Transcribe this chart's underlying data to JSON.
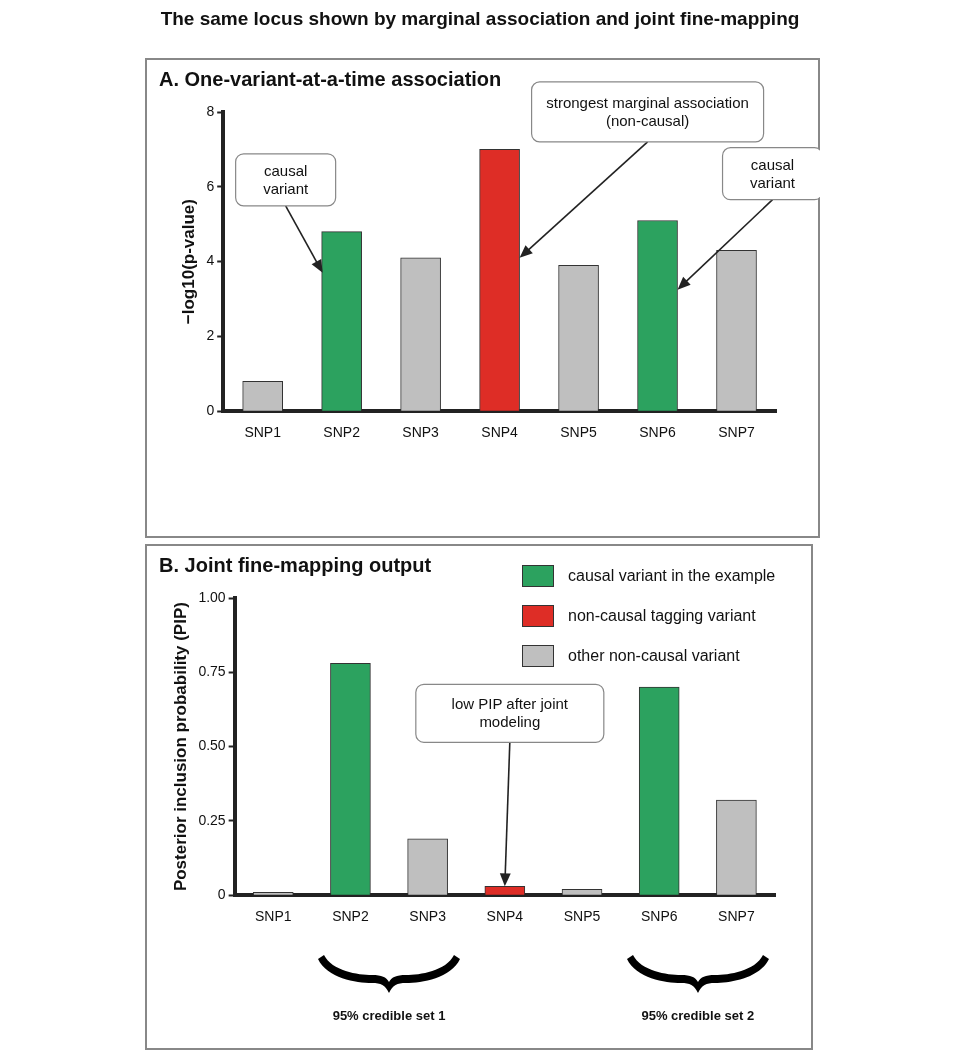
{
  "chart_data": [
    {
      "type": "bar",
      "title": "The same locus shown by marginal association and joint fine-mapping",
      "subtitle": "A. One-variant-at-a-time association",
      "ylabel": "−log10(p-value)",
      "categories": [
        "SNP1",
        "SNP2",
        "SNP3",
        "SNP4",
        "SNP5",
        "SNP6",
        "SNP7"
      ],
      "values": [
        0.8,
        4.8,
        4.1,
        7.0,
        3.9,
        5.1,
        4.3
      ],
      "colors": [
        "#bfbfbf",
        "#2ca25f",
        "#bfbfbf",
        "#de2d26",
        "#bfbfbf",
        "#2ca25f",
        "#bfbfbf"
      ],
      "ylim": [
        0,
        8
      ],
      "yticks": [
        0,
        2,
        4,
        6,
        8
      ],
      "grid": false,
      "legend": false,
      "annotations": [
        "causal variant",
        "strongest marginal association (non-causal)",
        "causal variant"
      ]
    },
    {
      "type": "bar",
      "title": "B. Joint fine-mapping output",
      "ylabel": "Posterior inclusion probability (PIP)",
      "stacked": true,
      "categories": [
        "SNP1",
        "SNP2",
        "SNP3",
        "SNP4",
        "SNP5",
        "SNP6",
        "SNP7"
      ],
      "series": [
        {
          "name": "causal variant in the example",
          "color": "#2ca25f",
          "values": [
            null,
            0.78,
            null,
            null,
            null,
            0.7,
            null
          ]
        },
        {
          "name": "non-causal tagging variant",
          "color": "#de2d26",
          "values": [
            null,
            null,
            null,
            0.03,
            null,
            null,
            null
          ]
        },
        {
          "name": "other non-causal variant",
          "color": "#bfbfbf",
          "values": [
            0.01,
            null,
            0.19,
            null,
            0.02,
            null,
            0.32
          ]
        }
      ],
      "ylim": [
        0,
        1
      ],
      "yticks": [
        0,
        0.25,
        {
          "value": 0.5,
          "label": "0.50"
        },
        0.75,
        {
          "value": 1,
          "label": "1.00"
        }
      ],
      "grid": false,
      "legend": "top right",
      "annotations": [
        "low PIP after joint modeling",
        "95% credible set 1",
        "95% credible set 2"
      ]
    }
  ]
}
